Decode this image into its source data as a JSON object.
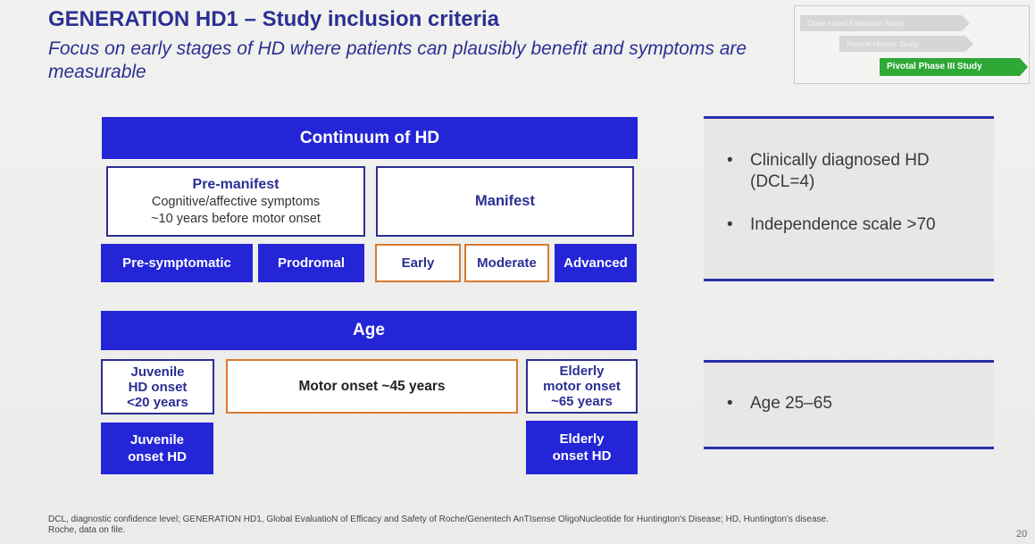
{
  "header": {
    "title": "GENERATION HD1 – Study inclusion criteria",
    "subtitle": "Focus on early stages of HD where patients can plausibly benefit and symptoms are measurable"
  },
  "study_stages": [
    {
      "label": "Open-Label Extension Study"
    },
    {
      "label": "Natural History Study"
    },
    {
      "label": "Pivotal Phase III Study"
    }
  ],
  "continuum": {
    "header": "Continuum of HD",
    "premanifest": {
      "title": "Pre-manifest",
      "line1": "Cognitive/affective symptoms",
      "line2": "~10 years before motor onset"
    },
    "manifest": {
      "title": "Manifest"
    },
    "stages": {
      "presymptomatic": "Pre-symptomatic",
      "prodromal": "Prodromal",
      "early": "Early",
      "moderate": "Moderate",
      "advanced": "Advanced"
    }
  },
  "age": {
    "header": "Age",
    "juvenile": {
      "line1": "Juvenile",
      "line2": "HD onset",
      "line3": "<20 years"
    },
    "motor_onset": "Motor onset ~45 years",
    "elderly": {
      "line1": "Elderly",
      "line2": "motor onset",
      "line3": "~65 years"
    },
    "juvenile_bottom": {
      "line1": "Juvenile",
      "line2": "onset HD"
    },
    "elderly_bottom": {
      "line1": "Elderly",
      "line2": "onset HD"
    }
  },
  "criteria": {
    "panel1": [
      "Clinically diagnosed HD (DCL=4)",
      "Independence scale >70"
    ],
    "panel2": [
      "Age 25–65"
    ]
  },
  "footnote": {
    "line1": "DCL, diagnostic confidence level; GENERATION HD1, Global EvaluatioN of Efficacy and Safety of Roche/Genentech AnTIsense OligoNucleotide for Huntington's Disease; HD, Huntington's disease.",
    "line2": "Roche, data on file."
  },
  "page_number": "20",
  "colors": {
    "primary_blue": "#2325d6",
    "title_navy": "#2b2f93",
    "orange": "#d97a2f",
    "green": "#2ea836"
  }
}
